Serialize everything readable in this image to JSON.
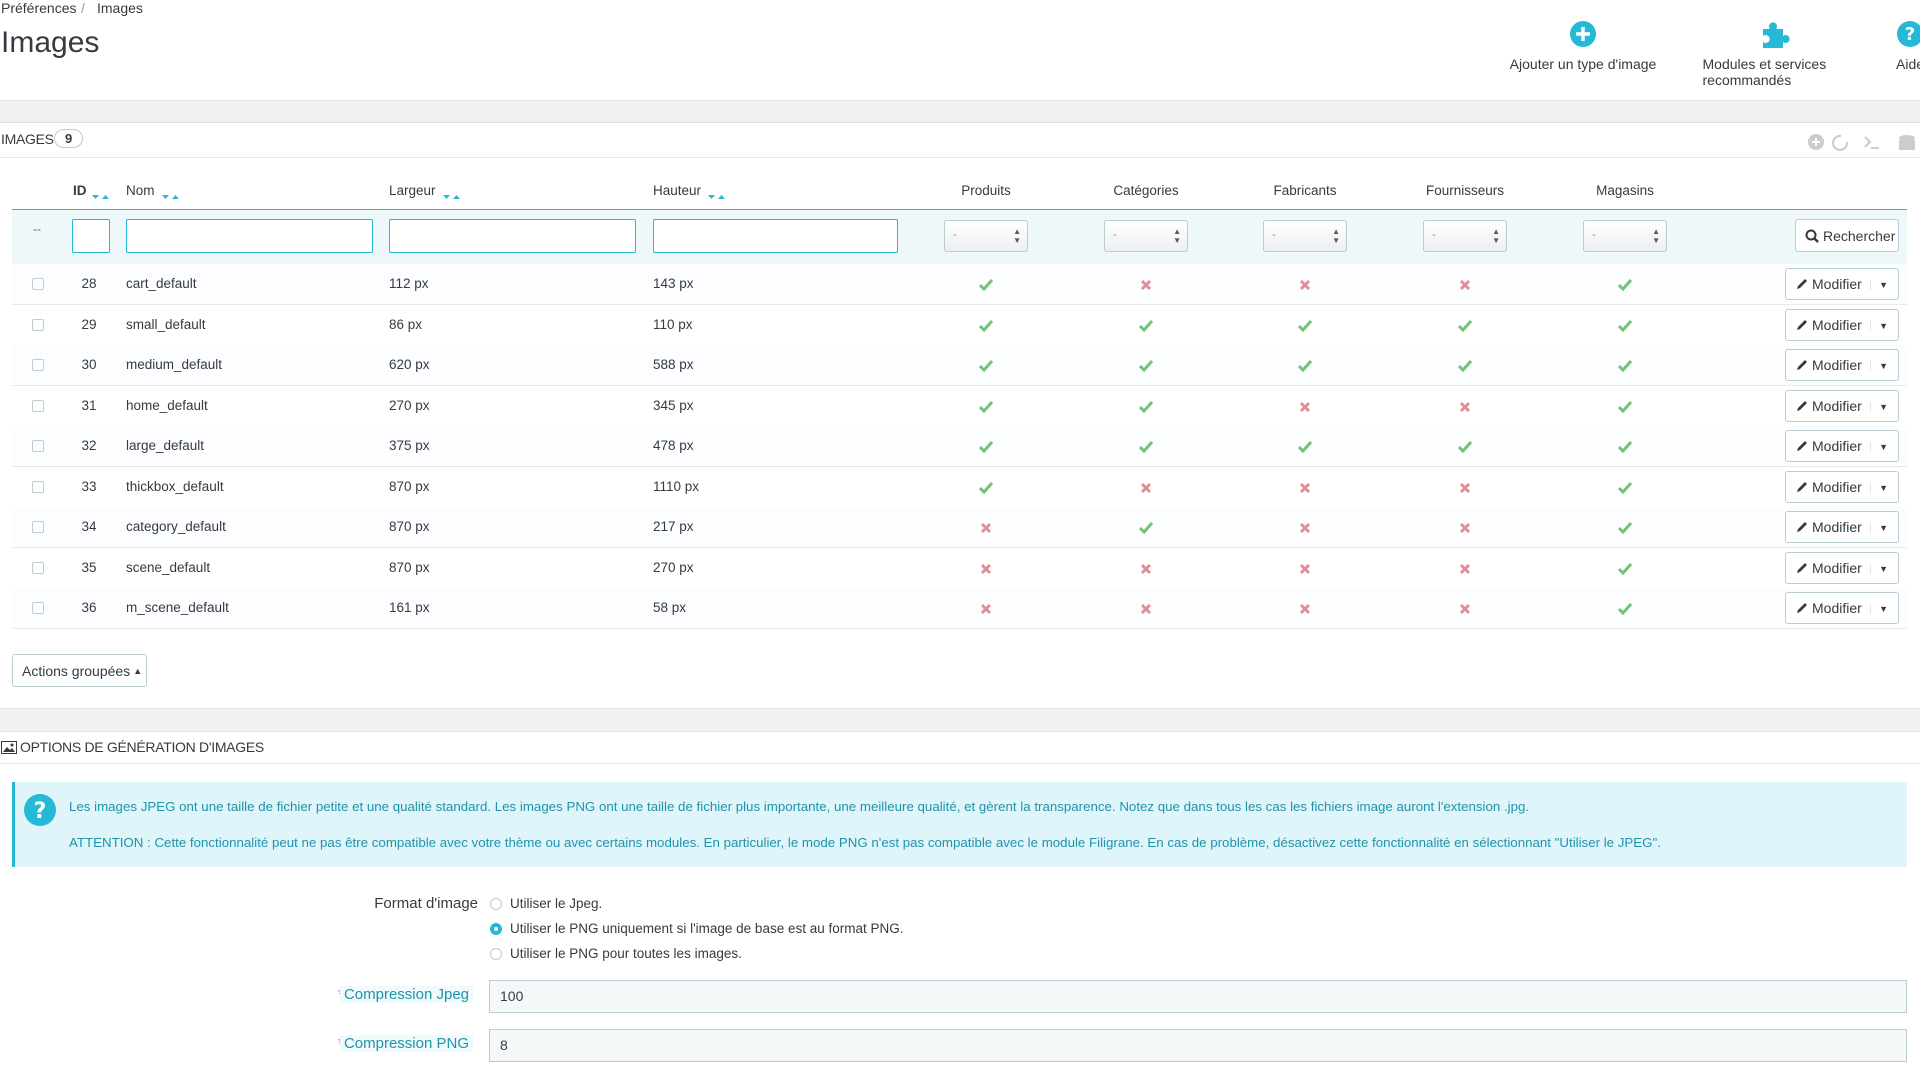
{
  "breadcrumb": {
    "parent": "Préférences",
    "separator": "/",
    "current": "Images"
  },
  "title": "Images",
  "toolbar": [
    "Ajouter un type d'image",
    "Modules et services recommandés",
    "Aide"
  ],
  "panel": {
    "heading": "IMAGES",
    "count": "9"
  },
  "table": {
    "columns": [
      "ID",
      "Nom",
      "Largeur",
      "Hauteur",
      "Produits",
      "Catégories",
      "Fabricants",
      "Fournisseurs",
      "Magasins"
    ],
    "filter_placeholder": "--",
    "select_placeholder": "-",
    "search_button": "Rechercher",
    "edit_button": "Modifier",
    "rows": [
      {
        "id": "28",
        "name": "cart_default",
        "width": "112 px",
        "height": "143 px",
        "flags": [
          true,
          false,
          false,
          false,
          true
        ]
      },
      {
        "id": "29",
        "name": "small_default",
        "width": "86 px",
        "height": "110 px",
        "flags": [
          true,
          true,
          true,
          true,
          true
        ]
      },
      {
        "id": "30",
        "name": "medium_default",
        "width": "620 px",
        "height": "588 px",
        "flags": [
          true,
          true,
          true,
          true,
          true
        ]
      },
      {
        "id": "31",
        "name": "home_default",
        "width": "270 px",
        "height": "345 px",
        "flags": [
          true,
          true,
          false,
          false,
          true
        ]
      },
      {
        "id": "32",
        "name": "large_default",
        "width": "375 px",
        "height": "478 px",
        "flags": [
          true,
          true,
          true,
          true,
          true
        ]
      },
      {
        "id": "33",
        "name": "thickbox_default",
        "width": "870 px",
        "height": "1110 px",
        "flags": [
          true,
          false,
          false,
          false,
          true
        ]
      },
      {
        "id": "34",
        "name": "category_default",
        "width": "870 px",
        "height": "217 px",
        "flags": [
          false,
          true,
          false,
          false,
          true
        ]
      },
      {
        "id": "35",
        "name": "scene_default",
        "width": "870 px",
        "height": "270 px",
        "flags": [
          false,
          false,
          false,
          false,
          true
        ]
      },
      {
        "id": "36",
        "name": "m_scene_default",
        "width": "161 px",
        "height": "58 px",
        "flags": [
          false,
          false,
          false,
          false,
          true
        ]
      }
    ],
    "bulk_actions": "Actions groupées"
  },
  "options": {
    "heading": "OPTIONS DE GÉNÉRATION D'IMAGES",
    "alert": [
      "Les images JPEG ont une taille de fichier petite et une qualité standard. Les images PNG ont une taille de fichier plus importante, une meilleure qualité, et gèrent la transparence. Notez que dans tous les cas les fichiers image auront l'extension .jpg.",
      "ATTENTION : Cette fonctionnalité peut ne pas être compatible avec votre thème ou avec certains modules. En particulier, le mode PNG n'est pas compatible avec le module Filigrane. En cas de problème, désactivez cette fonctionnalité en sélectionnant \"Utiliser le JPEG\"."
    ],
    "format_label": "Format d'image",
    "format_options": [
      "Utiliser le Jpeg.",
      "Utiliser le PNG uniquement si l'image de base est au format PNG.",
      "Utiliser le PNG pour toutes les images."
    ],
    "format_selected": 1,
    "required_mark": "*",
    "fields": [
      {
        "label": "Compression Jpeg",
        "value": "100"
      },
      {
        "label": "Compression PNG",
        "value": "8"
      }
    ]
  }
}
